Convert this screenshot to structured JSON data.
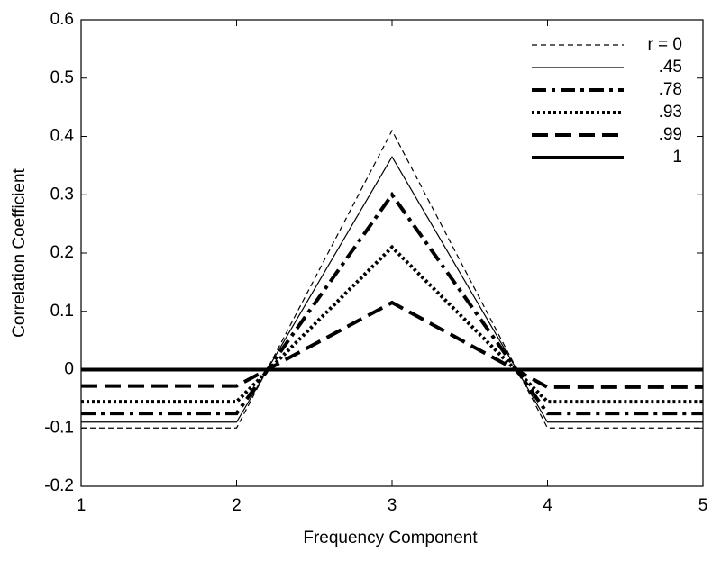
{
  "chart_data": {
    "type": "line",
    "xlabel": "Frequency Component",
    "ylabel": "Correlation Coefficient",
    "x": [
      1,
      2,
      3,
      4,
      5
    ],
    "xlim": [
      1,
      5
    ],
    "xticks": [
      1,
      2,
      3,
      4,
      5
    ],
    "ylim": [
      -0.2,
      0.6
    ],
    "yticks": [
      -0.2,
      -0.1,
      0,
      0.1,
      0.2,
      0.3,
      0.4,
      0.5,
      0.6
    ],
    "grid": false,
    "legend_position": "upper-right",
    "series": [
      {
        "name": "r = 0",
        "color": "#000000",
        "linestyle": "dashed",
        "linewidth": 1.2,
        "values": [
          -0.1,
          -0.1,
          0.41,
          -0.1,
          -0.1
        ]
      },
      {
        "name": ".45",
        "color": "#000000",
        "linestyle": "solid",
        "linewidth": 1.2,
        "values": [
          -0.09,
          -0.09,
          0.365,
          -0.09,
          -0.09
        ]
      },
      {
        "name": ".78",
        "color": "#000000",
        "linestyle": "dashdot",
        "linewidth": 4,
        "values": [
          -0.075,
          -0.075,
          0.3,
          -0.075,
          -0.075
        ]
      },
      {
        "name": ".93",
        "color": "#000000",
        "linestyle": "dotted",
        "linewidth": 4,
        "values": [
          -0.055,
          -0.055,
          0.21,
          -0.055,
          -0.055
        ]
      },
      {
        "name": ".99",
        "color": "#000000",
        "linestyle": "dashed",
        "linewidth": 4,
        "values": [
          -0.028,
          -0.028,
          0.115,
          -0.03,
          -0.03
        ]
      },
      {
        "name": "1",
        "color": "#000000",
        "linestyle": "solid",
        "linewidth": 4,
        "values": [
          0,
          0,
          0,
          0,
          0
        ]
      }
    ]
  }
}
